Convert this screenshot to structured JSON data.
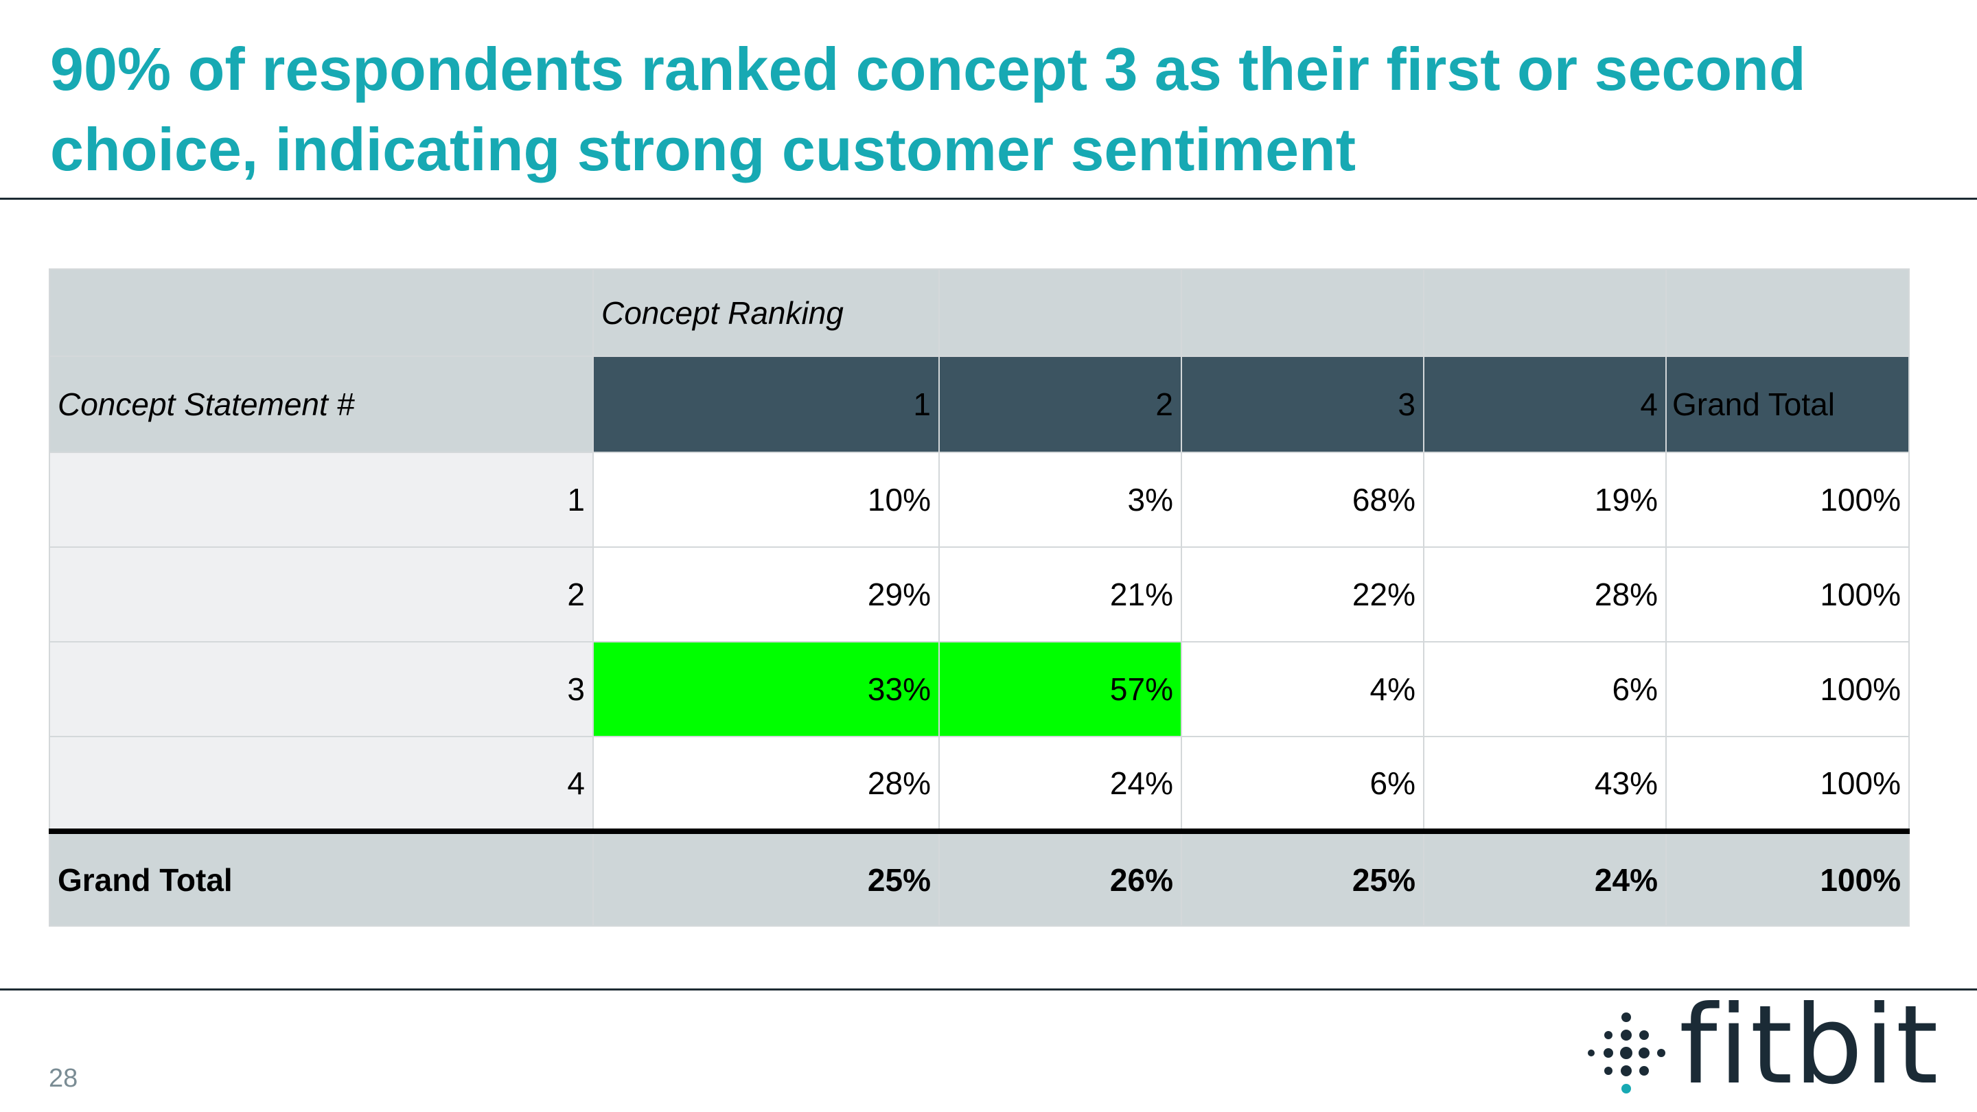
{
  "slide": {
    "title": "90% of respondents ranked concept 3 as their first or second choice, indicating strong customer sentiment",
    "page_number": "28",
    "logo_text": "fitbit"
  },
  "colors": {
    "title": "#17a9b3",
    "header_dark": "#3c5461",
    "header_gray": "#ced6d8",
    "highlight": "#00ff00"
  },
  "chart_data": {
    "type": "table",
    "column_field_label": "Concept Ranking",
    "row_field_label": "Concept Statement #",
    "columns": [
      "1",
      "2",
      "3",
      "4",
      "Grand Total"
    ],
    "rows": [
      {
        "label": "1",
        "values": [
          "10%",
          "3%",
          "68%",
          "19%",
          "100%"
        ]
      },
      {
        "label": "2",
        "values": [
          "29%",
          "21%",
          "22%",
          "28%",
          "100%"
        ]
      },
      {
        "label": "3",
        "values": [
          "33%",
          "57%",
          "4%",
          "6%",
          "100%"
        ]
      },
      {
        "label": "4",
        "values": [
          "28%",
          "24%",
          "6%",
          "43%",
          "100%"
        ]
      }
    ],
    "total_row": {
      "label": "Grand Total",
      "values": [
        "25%",
        "26%",
        "25%",
        "24%",
        "100%"
      ]
    },
    "highlighted_cells": [
      {
        "row": "3",
        "column": "1"
      },
      {
        "row": "3",
        "column": "2"
      }
    ]
  }
}
